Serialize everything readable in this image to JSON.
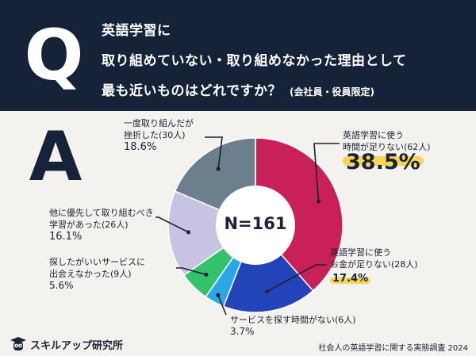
{
  "question": {
    "letter": "Q",
    "line1": "英語学習に",
    "line2": "取り組めていない・取り組めなかった理由として",
    "line3": "最も近いものはどれですか？",
    "line3_sub": "(会社員・役員限定)"
  },
  "answer": {
    "letter": "A"
  },
  "center_label": "N=161",
  "labels": [
    {
      "line1": "英語学習に使う",
      "line2": "時間が足りない(62人)",
      "pct": "38.5%"
    },
    {
      "line1": "英語学習に使う",
      "line2": "お金が足りない(28人)",
      "pct": "17.4%"
    },
    {
      "line1": "サービスを探す時間がない(6人)",
      "pct": "3.7%"
    },
    {
      "line1": "探したがいいサービスに",
      "line2": "出会えなかった(9人)",
      "pct": "5.6%"
    },
    {
      "line1": "他に優先して取り組むべき",
      "line2": "学習があった(26人)",
      "pct": "16.1%"
    },
    {
      "line1": "一度取り組んだが",
      "line2": "挫折した(30人)",
      "pct": "18.6%"
    }
  ],
  "chart_data": {
    "type": "pie",
    "total_n": 161,
    "categories": [
      "英語学習に使う時間が足りない",
      "英語学習に使うお金が足りない",
      "サービスを探す時間がない",
      "探したがいいサービスに出会えなかった",
      "他に優先して取り組むべき学習があった",
      "一度取り組んだが挫折した"
    ],
    "counts": [
      62,
      28,
      6,
      9,
      26,
      30
    ],
    "values": [
      38.5,
      17.4,
      3.7,
      5.6,
      16.1,
      18.6
    ],
    "colors": [
      "#c9205a",
      "#2344b8",
      "#2ba6e6",
      "#33c26b",
      "#c7c3e2",
      "#6b7f8c"
    ]
  },
  "footer": {
    "brand": "スキルアップ研究所",
    "source": "社会人の英語学習に関する実態調査 2024"
  }
}
